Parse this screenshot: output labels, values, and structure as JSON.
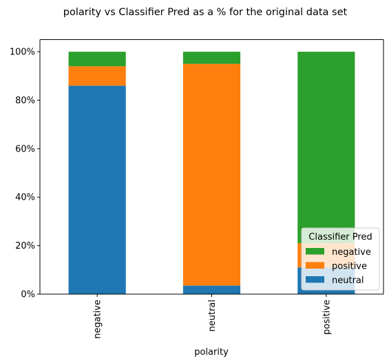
{
  "chart_data": {
    "type": "bar",
    "stacked": true,
    "title": "polarity vs Classifier Pred as a % for the original data set",
    "xlabel": "polarity",
    "ylabel": "",
    "categories": [
      "negative",
      "neutral",
      "positive"
    ],
    "ylim": [
      0,
      1.05
    ],
    "yticks": [
      0,
      0.2,
      0.4,
      0.6,
      0.8,
      1.0
    ],
    "ytick_labels": [
      "0%",
      "20%",
      "40%",
      "60%",
      "80%",
      "100%"
    ],
    "grid": false,
    "legend": {
      "title": "Classifier Pred",
      "placement": "bottom-right",
      "entries": [
        "negative",
        "positive",
        "neutral"
      ]
    },
    "series": [
      {
        "name": "neutral",
        "color": "#1f77b4",
        "values": [
          0.86,
          0.035,
          0.11
        ]
      },
      {
        "name": "positive",
        "color": "#ff7f0e",
        "values": [
          0.08,
          0.915,
          0.1
        ]
      },
      {
        "name": "negative",
        "color": "#2ca02c",
        "values": [
          0.06,
          0.05,
          0.79
        ]
      }
    ]
  }
}
